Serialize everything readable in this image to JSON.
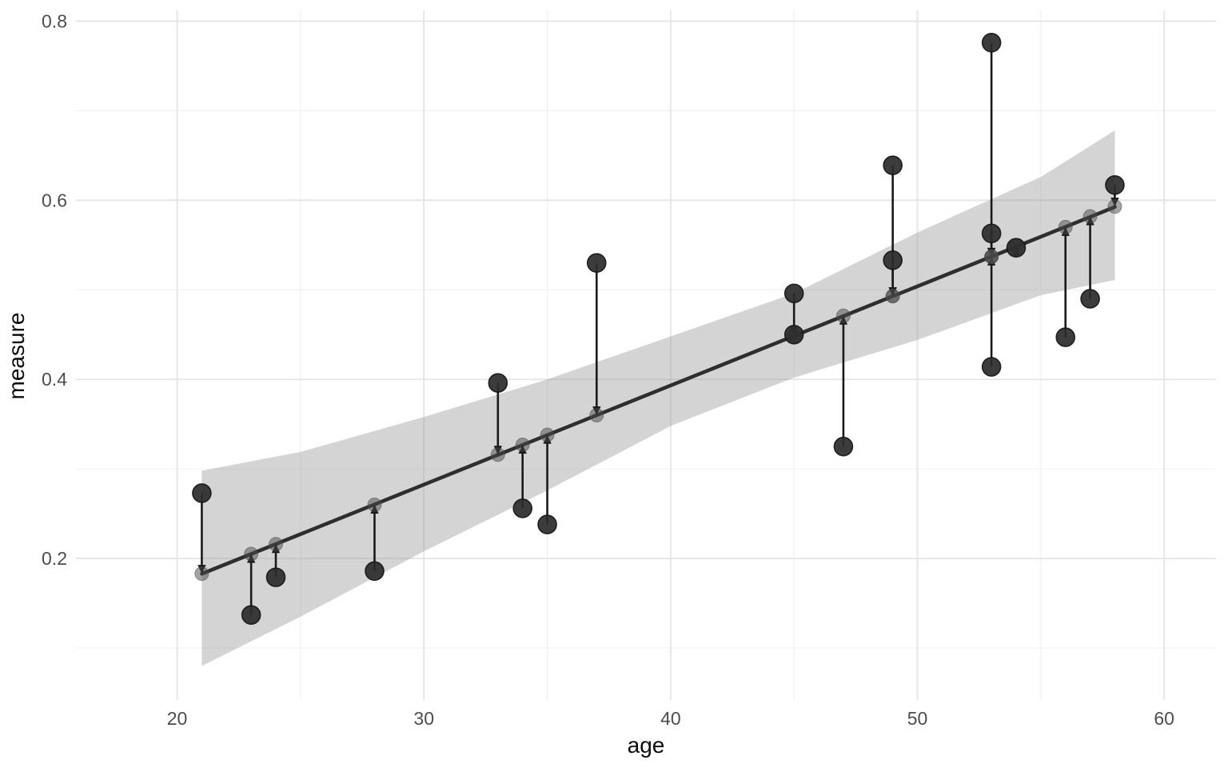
{
  "chart_data": {
    "type": "scatter",
    "title": "",
    "xlabel": "age",
    "ylabel": "measure",
    "xlim": [
      15.9,
      62.1
    ],
    "ylim": [
      0.042,
      0.812
    ],
    "x_ticks_major": [
      20,
      30,
      40,
      50,
      60
    ],
    "x_ticks_minor": [
      25,
      35,
      45,
      55
    ],
    "y_ticks_major": [
      0.2,
      0.4,
      0.6,
      0.8
    ],
    "y_ticks_minor": [
      0.1,
      0.3,
      0.5,
      0.7
    ],
    "grid": true,
    "legend": false,
    "description": "Observed points connected by vertical arrows to fitted values on a linear regression line with confidence ribbon",
    "regression": {
      "intercept": -0.0496,
      "slope": 0.01107,
      "x_start": 21,
      "x_end": 58
    },
    "ribbon": [
      {
        "age": 21,
        "lower": 0.08,
        "upper": 0.298
      },
      {
        "age": 25,
        "lower": 0.135,
        "upper": 0.319
      },
      {
        "age": 30,
        "lower": 0.208,
        "upper": 0.358
      },
      {
        "age": 35,
        "lower": 0.276,
        "upper": 0.4
      },
      {
        "age": 40,
        "lower": 0.348,
        "upper": 0.448
      },
      {
        "age": 45,
        "lower": 0.402,
        "upper": 0.496
      },
      {
        "age": 50,
        "lower": 0.444,
        "upper": 0.564
      },
      {
        "age": 55,
        "lower": 0.494,
        "upper": 0.626
      },
      {
        "age": 58,
        "lower": 0.511,
        "upper": 0.678
      }
    ],
    "points": [
      {
        "age": 21,
        "observed": 0.273,
        "fitted": 0.183
      },
      {
        "age": 23,
        "observed": 0.137,
        "fitted": 0.205
      },
      {
        "age": 24,
        "observed": 0.179,
        "fitted": 0.216
      },
      {
        "age": 28,
        "observed": 0.186,
        "fitted": 0.26
      },
      {
        "age": 33,
        "observed": 0.396,
        "fitted": 0.316
      },
      {
        "age": 34,
        "observed": 0.256,
        "fitted": 0.327
      },
      {
        "age": 35,
        "observed": 0.238,
        "fitted": 0.338
      },
      {
        "age": 37,
        "observed": 0.53,
        "fitted": 0.36
      },
      {
        "age": 45,
        "observed": 0.496,
        "fitted": 0.449
      },
      {
        "age": 45,
        "observed": 0.45,
        "fitted": 0.449
      },
      {
        "age": 47,
        "observed": 0.325,
        "fitted": 0.471
      },
      {
        "age": 49,
        "observed": 0.639,
        "fitted": 0.493
      },
      {
        "age": 49,
        "observed": 0.533,
        "fitted": 0.493
      },
      {
        "age": 53,
        "observed": 0.776,
        "fitted": 0.537
      },
      {
        "age": 53,
        "observed": 0.563,
        "fitted": 0.537
      },
      {
        "age": 53,
        "observed": 0.414,
        "fitted": 0.537
      },
      {
        "age": 54,
        "observed": 0.547,
        "fitted": 0.548
      },
      {
        "age": 56,
        "observed": 0.447,
        "fitted": 0.57
      },
      {
        "age": 57,
        "observed": 0.49,
        "fitted": 0.582
      },
      {
        "age": 58,
        "observed": 0.617,
        "fitted": 0.593
      }
    ]
  },
  "colors": {
    "background": "#ffffff",
    "grid_major": "#e4e4e4",
    "grid_minor": "#f0f0f0",
    "ribbon_fill": "#999999",
    "regression_line": "#2e2e2e",
    "arrow": "#1a1a1a",
    "observed_point": "#2d2d2d",
    "observed_stroke": "#141414",
    "fitted_point": "#4a4a4a",
    "tick_label": "#4d4d4d",
    "axis_title": "#0d0d0d"
  }
}
